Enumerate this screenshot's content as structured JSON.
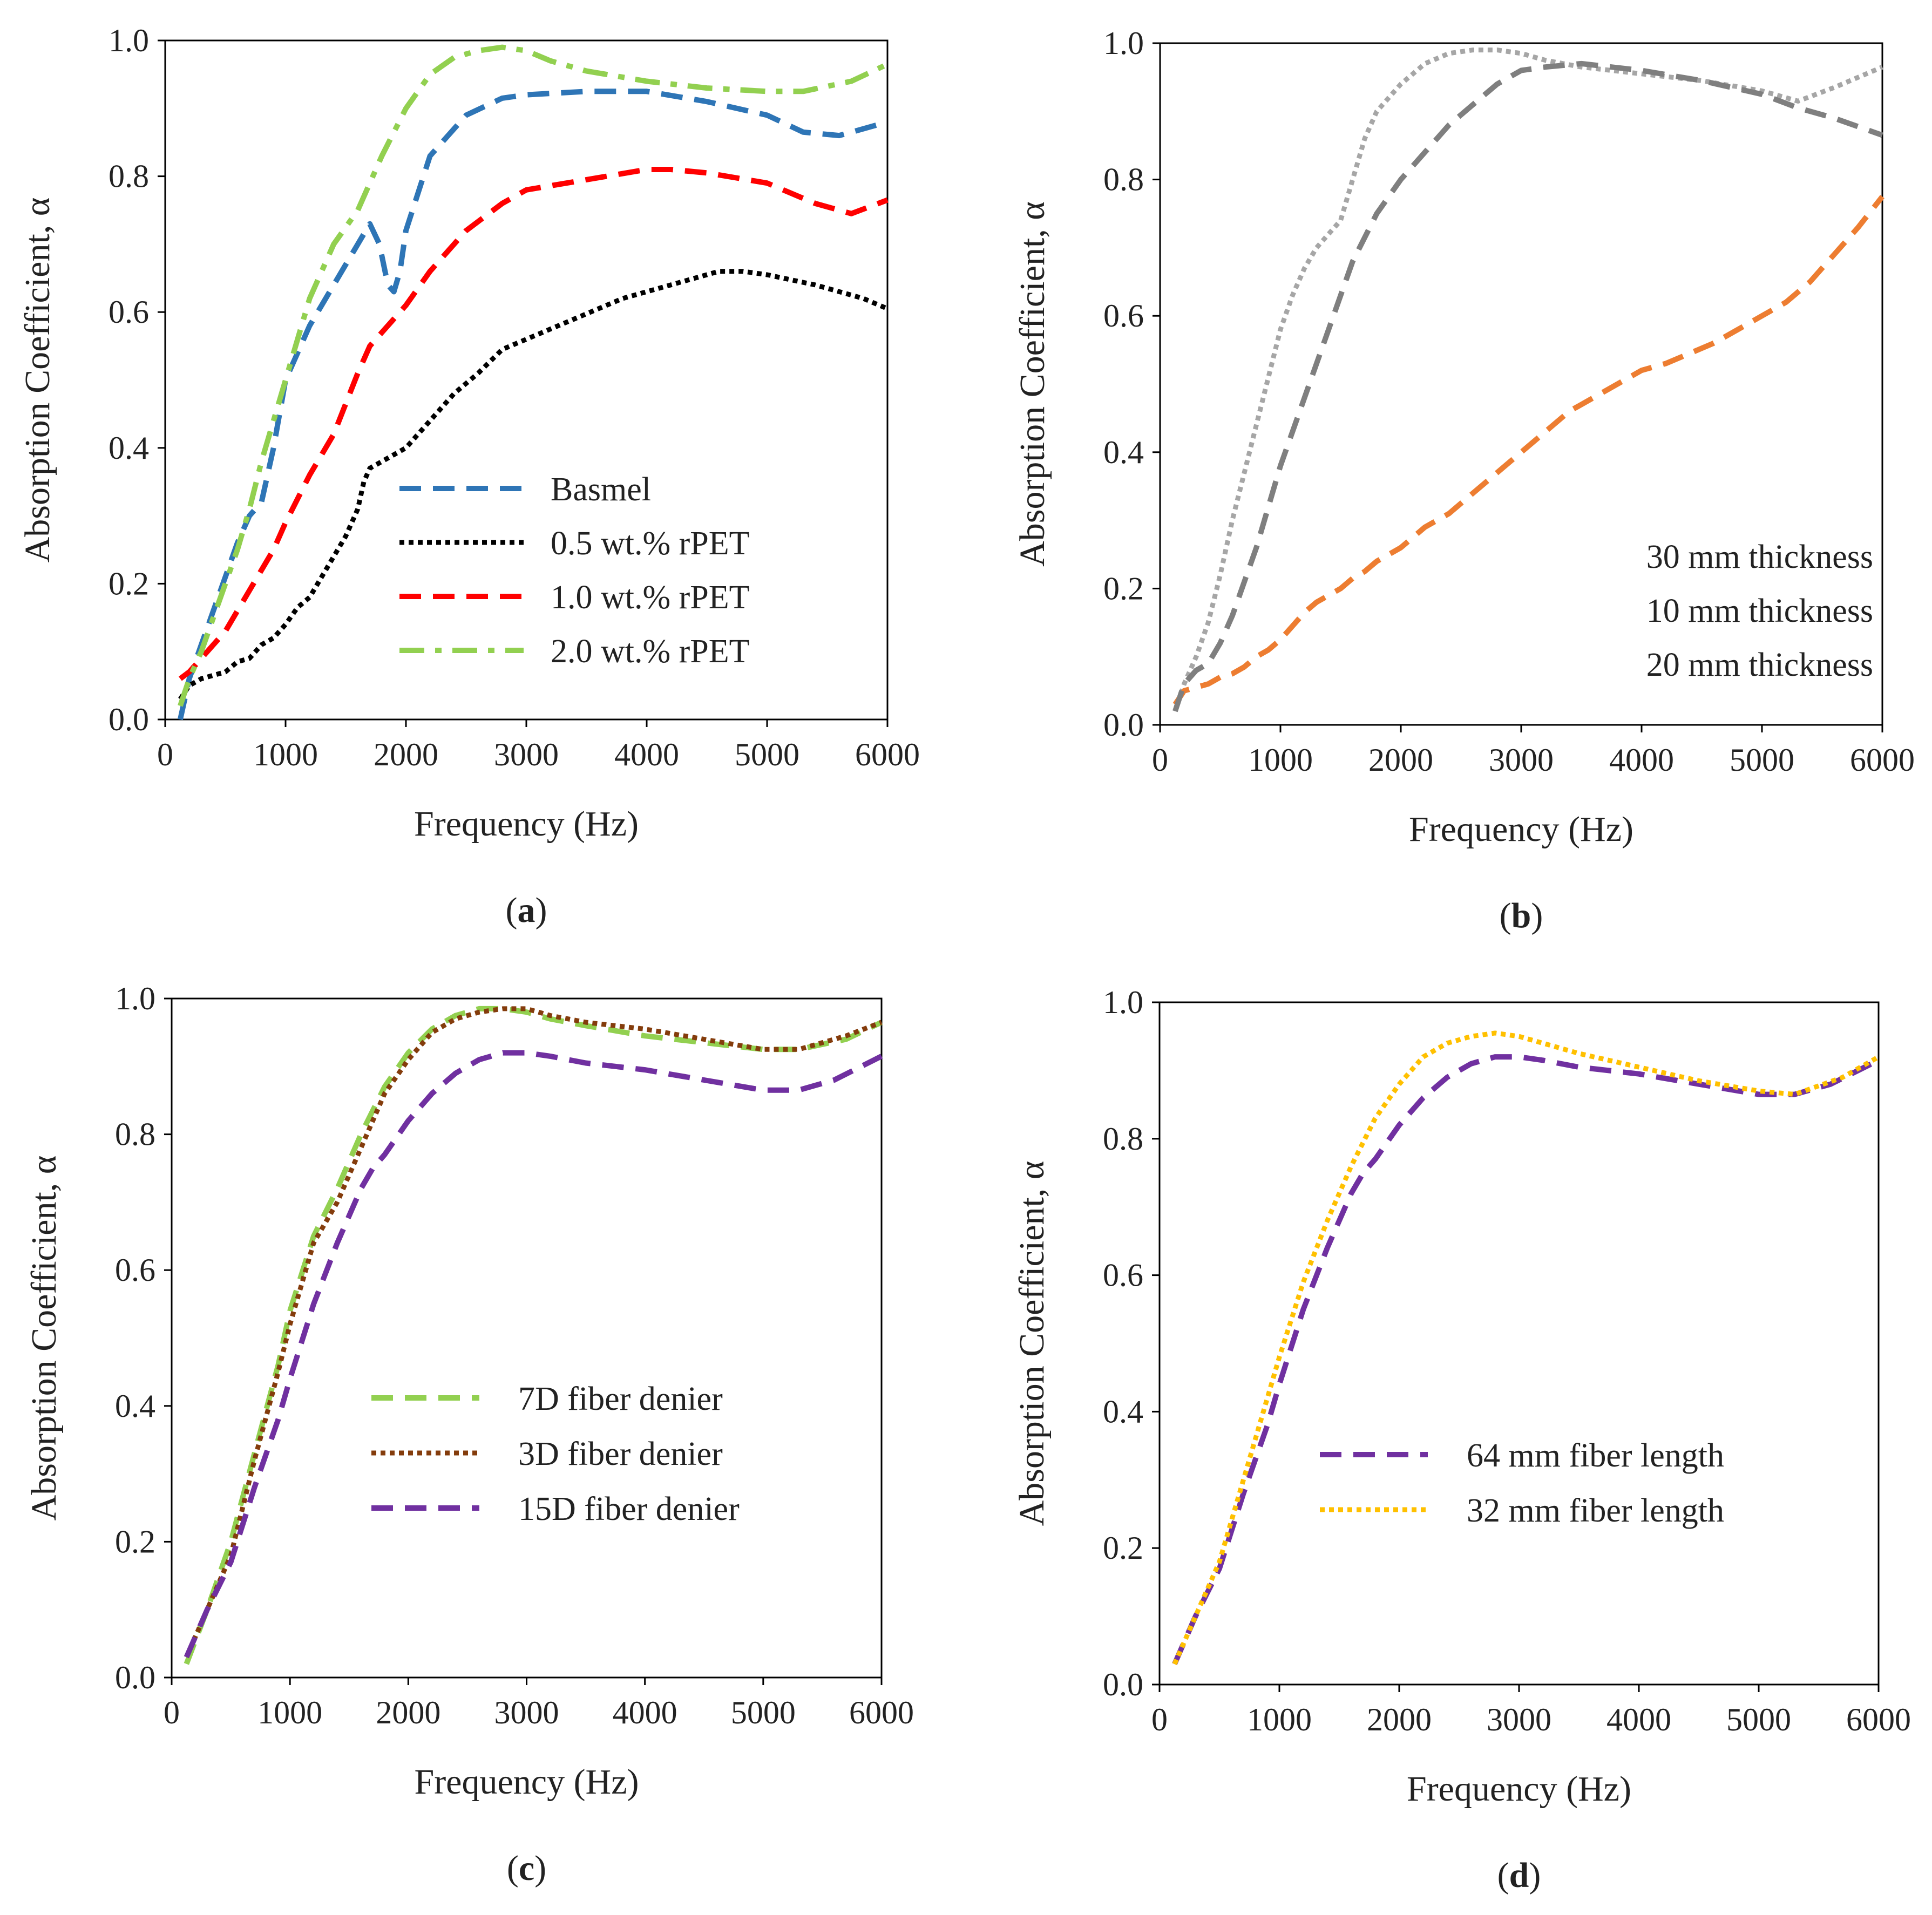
{
  "chart_data": [
    {
      "id": "a",
      "type": "line",
      "panel_label": "a",
      "xlabel": "Frequency (Hz)",
      "ylabel": "Absorption Coefficient, α",
      "xlim": [
        0,
        6000
      ],
      "ylim": [
        0,
        1.0
      ],
      "xticks": [
        "0",
        "1000",
        "2000",
        "3000",
        "4000",
        "5000",
        "6000"
      ],
      "yticks": [
        "0.0",
        "0.2",
        "0.4",
        "0.6",
        "0.8",
        "1.0"
      ],
      "grid": false,
      "legend_position": "center-right",
      "series": [
        {
          "name": "Basmel",
          "color": "#2e75b6",
          "dash": "dashed",
          "x": [
            125,
            200,
            300,
            400,
            500,
            600,
            700,
            800,
            900,
            1000,
            1200,
            1400,
            1600,
            1700,
            1780,
            1850,
            1900,
            1950,
            2000,
            2200,
            2500,
            2800,
            3000,
            3500,
            4000,
            4500,
            5000,
            5300,
            5600,
            6000
          ],
          "y": [
            0.0,
            0.06,
            0.11,
            0.16,
            0.21,
            0.26,
            0.3,
            0.32,
            0.4,
            0.5,
            0.58,
            0.64,
            0.7,
            0.73,
            0.7,
            0.64,
            0.63,
            0.66,
            0.72,
            0.83,
            0.89,
            0.915,
            0.92,
            0.925,
            0.925,
            0.91,
            0.89,
            0.865,
            0.86,
            0.88
          ]
        },
        {
          "name": "0.5 wt.% rPET",
          "color": "#000000",
          "dash": "dotted",
          "x": [
            125,
            200,
            300,
            400,
            500,
            600,
            700,
            800,
            900,
            1000,
            1100,
            1200,
            1300,
            1400,
            1500,
            1600,
            1650,
            1700,
            1800,
            1900,
            2000,
            2200,
            2400,
            2600,
            2800,
            3000,
            3400,
            3800,
            4200,
            4600,
            4800,
            5000,
            5400,
            5800,
            6000
          ],
          "y": [
            0.03,
            0.05,
            0.06,
            0.065,
            0.07,
            0.085,
            0.09,
            0.11,
            0.12,
            0.14,
            0.165,
            0.18,
            0.21,
            0.24,
            0.27,
            0.31,
            0.35,
            0.37,
            0.38,
            0.39,
            0.4,
            0.44,
            0.48,
            0.51,
            0.545,
            0.56,
            0.59,
            0.62,
            0.64,
            0.66,
            0.66,
            0.655,
            0.64,
            0.62,
            0.605
          ]
        },
        {
          "name": "1.0 wt.% rPET",
          "color": "#ff0000",
          "dash": "dashed",
          "x": [
            125,
            200,
            300,
            400,
            500,
            600,
            700,
            800,
            900,
            1000,
            1200,
            1400,
            1600,
            1700,
            1800,
            1900,
            2000,
            2200,
            2500,
            2800,
            3000,
            3500,
            4000,
            4200,
            4500,
            5000,
            5400,
            5700,
            6000
          ],
          "y": [
            0.06,
            0.07,
            0.09,
            0.11,
            0.13,
            0.16,
            0.19,
            0.22,
            0.25,
            0.29,
            0.36,
            0.42,
            0.51,
            0.55,
            0.57,
            0.59,
            0.61,
            0.66,
            0.72,
            0.76,
            0.78,
            0.795,
            0.81,
            0.81,
            0.805,
            0.79,
            0.76,
            0.745,
            0.765
          ]
        },
        {
          "name": "2.0 wt.% rPET",
          "color": "#92d050",
          "dash": "dashdot",
          "x": [
            125,
            200,
            300,
            400,
            500,
            600,
            700,
            800,
            900,
            1000,
            1200,
            1400,
            1600,
            1800,
            2000,
            2200,
            2400,
            2600,
            2800,
            3000,
            3200,
            3500,
            4000,
            4500,
            5000,
            5300,
            5700,
            6000
          ],
          "y": [
            0.02,
            0.06,
            0.1,
            0.15,
            0.2,
            0.25,
            0.31,
            0.38,
            0.44,
            0.5,
            0.62,
            0.7,
            0.75,
            0.83,
            0.9,
            0.95,
            0.975,
            0.985,
            0.99,
            0.985,
            0.97,
            0.955,
            0.94,
            0.93,
            0.925,
            0.925,
            0.94,
            0.965
          ]
        }
      ]
    },
    {
      "id": "b",
      "type": "line",
      "panel_label": "b",
      "xlabel": "Frequency (Hz)",
      "ylabel": "Absorption Coefficient, α",
      "xlim": [
        0,
        6000
      ],
      "ylim": [
        0,
        1.0
      ],
      "xticks": [
        "0",
        "1000",
        "2000",
        "3000",
        "4000",
        "5000",
        "6000"
      ],
      "yticks": [
        "0.0",
        "0.2",
        "0.4",
        "0.6",
        "0.8",
        "1.0"
      ],
      "grid": false,
      "legend_position": "bottom-right",
      "series": [
        {
          "name": "30 mm thickness",
          "color": "#a6a6a6",
          "dash": "dotted",
          "x": [
            125,
            200,
            300,
            400,
            500,
            600,
            700,
            800,
            900,
            1000,
            1100,
            1200,
            1300,
            1400,
            1500,
            1600,
            1700,
            1800,
            2000,
            2200,
            2400,
            2600,
            2800,
            3000,
            3200,
            3500,
            4000,
            4500,
            5000,
            5300,
            5600,
            6000
          ],
          "y": [
            0.02,
            0.06,
            0.1,
            0.15,
            0.22,
            0.3,
            0.37,
            0.44,
            0.51,
            0.58,
            0.63,
            0.67,
            0.7,
            0.72,
            0.74,
            0.8,
            0.86,
            0.9,
            0.94,
            0.97,
            0.985,
            0.99,
            0.99,
            0.985,
            0.975,
            0.965,
            0.955,
            0.945,
            0.93,
            0.915,
            0.935,
            0.965
          ]
        },
        {
          "name": "10 mm thickness",
          "color": "#ed7d31",
          "dash": "dashed",
          "x": [
            125,
            200,
            300,
            400,
            500,
            600,
            700,
            800,
            900,
            1000,
            1100,
            1200,
            1300,
            1400,
            1500,
            1600,
            1700,
            1800,
            1900,
            2000,
            2200,
            2400,
            2600,
            2800,
            3000,
            3200,
            3400,
            3600,
            3800,
            4000,
            4200,
            4400,
            4600,
            4800,
            5000,
            5200,
            5400,
            5600,
            5800,
            6000
          ],
          "y": [
            0.03,
            0.05,
            0.055,
            0.06,
            0.07,
            0.075,
            0.085,
            0.1,
            0.11,
            0.125,
            0.145,
            0.165,
            0.18,
            0.19,
            0.2,
            0.215,
            0.225,
            0.24,
            0.25,
            0.26,
            0.29,
            0.31,
            0.34,
            0.37,
            0.4,
            0.43,
            0.46,
            0.48,
            0.5,
            0.52,
            0.53,
            0.545,
            0.56,
            0.58,
            0.6,
            0.62,
            0.65,
            0.69,
            0.73,
            0.775
          ]
        },
        {
          "name": "20 mm thickness",
          "color": "#7f7f7f",
          "dash": "dashed",
          "x": [
            125,
            200,
            300,
            400,
            500,
            600,
            700,
            800,
            900,
            1000,
            1200,
            1400,
            1600,
            1800,
            2000,
            2200,
            2400,
            2600,
            2800,
            3000,
            3200,
            3500,
            4000,
            4500,
            5000,
            5300,
            5600,
            6000
          ],
          "y": [
            0.02,
            0.06,
            0.08,
            0.09,
            0.12,
            0.16,
            0.21,
            0.26,
            0.32,
            0.38,
            0.48,
            0.58,
            0.68,
            0.75,
            0.8,
            0.84,
            0.88,
            0.91,
            0.94,
            0.96,
            0.965,
            0.97,
            0.96,
            0.945,
            0.925,
            0.905,
            0.89,
            0.865
          ]
        }
      ]
    },
    {
      "id": "c",
      "type": "line",
      "panel_label": "c",
      "xlabel": "Frequency (Hz)",
      "ylabel": "Absorption Coefficient, α",
      "xlim": [
        0,
        6000
      ],
      "ylim": [
        0,
        1.0
      ],
      "xticks": [
        "0",
        "1000",
        "2000",
        "3000",
        "4000",
        "5000",
        "6000"
      ],
      "yticks": [
        "0.0",
        "0.2",
        "0.4",
        "0.6",
        "0.8",
        "1.0"
      ],
      "grid": false,
      "legend_position": "center-right",
      "series": [
        {
          "name": "7D fiber denier",
          "color": "#92d050",
          "dash": "dashed",
          "x": [
            125,
            300,
            500,
            700,
            900,
            1000,
            1200,
            1400,
            1600,
            1800,
            2000,
            2200,
            2400,
            2600,
            2800,
            3000,
            3200,
            3500,
            4000,
            4500,
            5000,
            5300,
            5700,
            6000
          ],
          "y": [
            0.02,
            0.1,
            0.2,
            0.33,
            0.46,
            0.54,
            0.65,
            0.72,
            0.8,
            0.87,
            0.92,
            0.955,
            0.975,
            0.985,
            0.985,
            0.98,
            0.97,
            0.96,
            0.945,
            0.935,
            0.925,
            0.925,
            0.94,
            0.965
          ]
        },
        {
          "name": "3D fiber denier",
          "color": "#843c0c",
          "dash": "dotted",
          "x": [
            125,
            300,
            500,
            700,
            900,
            1000,
            1200,
            1400,
            1600,
            1800,
            2000,
            2200,
            2400,
            2600,
            2800,
            3000,
            3200,
            3500,
            4000,
            4500,
            5000,
            5300,
            5700,
            6000
          ],
          "y": [
            0.03,
            0.1,
            0.18,
            0.32,
            0.45,
            0.52,
            0.64,
            0.7,
            0.78,
            0.86,
            0.91,
            0.95,
            0.97,
            0.98,
            0.985,
            0.985,
            0.975,
            0.965,
            0.955,
            0.94,
            0.925,
            0.925,
            0.945,
            0.965
          ]
        },
        {
          "name": "15D fiber denier",
          "color": "#7030a0",
          "dash": "dashed",
          "x": [
            125,
            300,
            500,
            700,
            900,
            1000,
            1200,
            1400,
            1600,
            1700,
            1800,
            2000,
            2200,
            2400,
            2600,
            2800,
            3000,
            3200,
            3500,
            4000,
            4500,
            5000,
            5300,
            5600,
            6000
          ],
          "y": [
            0.03,
            0.1,
            0.17,
            0.28,
            0.38,
            0.44,
            0.55,
            0.64,
            0.72,
            0.75,
            0.77,
            0.82,
            0.86,
            0.89,
            0.91,
            0.92,
            0.92,
            0.915,
            0.905,
            0.895,
            0.88,
            0.865,
            0.865,
            0.88,
            0.915
          ]
        }
      ]
    },
    {
      "id": "d",
      "type": "line",
      "panel_label": "d",
      "xlabel": "Frequency (Hz)",
      "ylabel": "Absorption Coefficient, α",
      "xlim": [
        0,
        6000
      ],
      "ylim": [
        0,
        1.0
      ],
      "xticks": [
        "0",
        "1000",
        "2000",
        "3000",
        "4000",
        "5000",
        "6000"
      ],
      "yticks": [
        "0.0",
        "0.2",
        "0.4",
        "0.6",
        "0.8",
        "1.0"
      ],
      "grid": false,
      "legend_position": "bottom-right",
      "series": [
        {
          "name": "64 mm fiber length",
          "color": "#7030a0",
          "dash": "dashed",
          "x": [
            125,
            300,
            500,
            700,
            900,
            1000,
            1200,
            1400,
            1600,
            1700,
            1800,
            2000,
            2200,
            2400,
            2600,
            2800,
            3000,
            3200,
            3500,
            4000,
            4500,
            5000,
            5300,
            5600,
            6000
          ],
          "y": [
            0.03,
            0.1,
            0.17,
            0.28,
            0.38,
            0.44,
            0.55,
            0.64,
            0.72,
            0.75,
            0.77,
            0.82,
            0.86,
            0.89,
            0.91,
            0.92,
            0.92,
            0.915,
            0.905,
            0.895,
            0.88,
            0.865,
            0.865,
            0.88,
            0.915
          ]
        },
        {
          "name": "32 mm fiber length",
          "color": "#ffc000",
          "dash": "dotted",
          "x": [
            125,
            300,
            500,
            700,
            900,
            1000,
            1200,
            1400,
            1600,
            1800,
            2000,
            2200,
            2400,
            2600,
            2800,
            3000,
            3200,
            3500,
            4000,
            4500,
            5000,
            5300,
            5700,
            6000
          ],
          "y": [
            0.03,
            0.1,
            0.18,
            0.3,
            0.42,
            0.48,
            0.59,
            0.68,
            0.76,
            0.83,
            0.88,
            0.92,
            0.94,
            0.95,
            0.955,
            0.95,
            0.94,
            0.925,
            0.905,
            0.885,
            0.87,
            0.865,
            0.89,
            0.92
          ]
        }
      ]
    }
  ]
}
